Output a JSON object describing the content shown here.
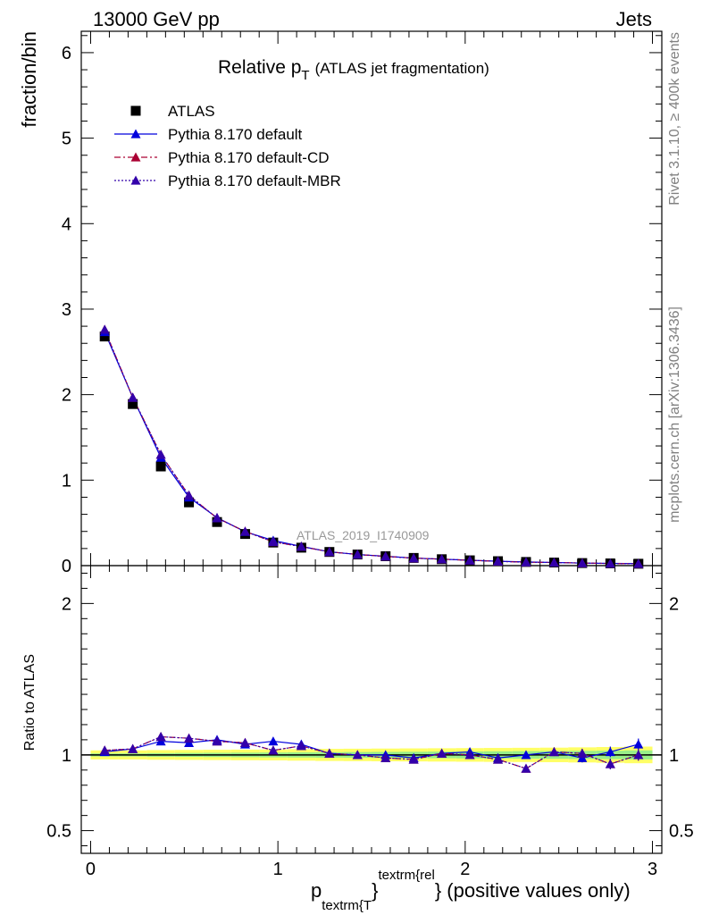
{
  "header": {
    "left": "13000 GeV pp",
    "right": "Jets"
  },
  "side": {
    "rivet": "Rivet 3.1.10, ≥ 400k events",
    "mcplots": "mcplots.cern.ch [arXiv:1306.3436]"
  },
  "chart_data": {
    "type": "scatter",
    "title_main": "Relative p",
    "title_sub": "T",
    "title_rest": "(ATLAS jet fragmentation)",
    "watermark": "ATLAS_2019_I1740909",
    "ylabel": "fraction/bin",
    "ratio_ylabel": "Ratio to ATLAS",
    "xlabel_main": "p",
    "xlabel_sub": "textrm{T",
    "xlabel_brace": "}",
    "xlabel_sup": "textrm{rel",
    "xlabel_rest": "} (positive values only)",
    "xlim": [
      -0.05,
      3.05
    ],
    "ylim": [
      0,
      6.25
    ],
    "ratio_ylim": [
      0.35,
      2.25
    ],
    "x_ticks": [
      "0",
      "1",
      "2",
      "3"
    ],
    "y_ticks": [
      "0",
      "1",
      "2",
      "3",
      "4",
      "5",
      "6"
    ],
    "ratio_ticks": [
      "0.5",
      "1",
      "2"
    ],
    "legend": [
      {
        "label": "ATLAS",
        "color": "#000000",
        "style": "marker"
      },
      {
        "label": "Pythia 8.170 default",
        "color": "#0000dd",
        "style": "solid"
      },
      {
        "label": "Pythia 8.170 default-CD",
        "color": "#aa0033",
        "style": "dashdot"
      },
      {
        "label": "Pythia 8.170 default-MBR",
        "color": "#3300aa",
        "style": "dotted"
      }
    ],
    "x": [
      0.075,
      0.225,
      0.375,
      0.525,
      0.675,
      0.825,
      0.975,
      1.125,
      1.275,
      1.425,
      1.575,
      1.725,
      1.875,
      2.025,
      2.175,
      2.325,
      2.475,
      2.625,
      2.775,
      2.925
    ],
    "data_values": [
      2.68,
      1.89,
      1.16,
      0.74,
      0.51,
      0.37,
      0.27,
      0.21,
      0.16,
      0.13,
      0.11,
      0.09,
      0.075,
      0.062,
      0.052,
      0.043,
      0.036,
      0.03,
      0.026,
      0.022
    ],
    "series": [
      {
        "name": "Pythia 8.170 default",
        "color": "#0000dd",
        "ratio": [
          1.02,
          1.04,
          1.09,
          1.08,
          1.1,
          1.07,
          1.09,
          1.07,
          1.01,
          1.0,
          1.0,
          0.98,
          1.01,
          1.02,
          0.98,
          1.0,
          1.02,
          0.98,
          1.02,
          1.07
        ],
        "ratio_err": [
          0.005,
          0.005,
          0.007,
          0.008,
          0.01,
          0.01,
          0.012,
          0.012,
          0.012,
          0.013,
          0.015,
          0.017,
          0.018,
          0.02,
          0.022,
          0.025,
          0.027,
          0.03,
          0.035,
          0.038
        ]
      },
      {
        "name": "Pythia 8.170 default-CD",
        "color": "#aa0033",
        "ratio": [
          1.03,
          1.04,
          1.12,
          1.11,
          1.09,
          1.08,
          1.03,
          1.06,
          1.01,
          1.0,
          0.98,
          0.97,
          1.01,
          1.0,
          0.97,
          0.91,
          1.02,
          1.01,
          0.94,
          1.0
        ],
        "ratio_err": [
          0.005,
          0.005,
          0.007,
          0.008,
          0.01,
          0.01,
          0.012,
          0.012,
          0.012,
          0.013,
          0.015,
          0.017,
          0.018,
          0.02,
          0.022,
          0.025,
          0.027,
          0.03,
          0.035,
          0.038
        ]
      },
      {
        "name": "Pythia 8.170 default-MBR",
        "color": "#3300aa",
        "ratio": [
          1.03,
          1.04,
          1.12,
          1.11,
          1.09,
          1.08,
          1.03,
          1.06,
          1.01,
          1.0,
          0.98,
          0.97,
          1.01,
          1.0,
          0.97,
          0.91,
          1.02,
          1.01,
          0.94,
          1.0
        ],
        "ratio_err": [
          0.005,
          0.005,
          0.007,
          0.008,
          0.01,
          0.01,
          0.012,
          0.012,
          0.012,
          0.013,
          0.015,
          0.017,
          0.018,
          0.02,
          0.022,
          0.025,
          0.027,
          0.03,
          0.035,
          0.038
        ]
      }
    ],
    "band_inner": [
      0.01,
      0.01,
      0.012,
      0.013,
      0.014,
      0.015,
      0.016,
      0.017,
      0.018,
      0.019,
      0.02,
      0.021,
      0.022,
      0.023,
      0.024,
      0.025,
      0.026,
      0.027,
      0.028,
      0.03
    ],
    "band_outer": [
      0.03,
      0.03,
      0.032,
      0.033,
      0.034,
      0.035,
      0.036,
      0.038,
      0.04,
      0.041,
      0.042,
      0.043,
      0.044,
      0.045,
      0.046,
      0.047,
      0.048,
      0.05,
      0.052,
      0.055
    ],
    "band_colors": {
      "outer": "#ffff66",
      "inner": "#99ee88"
    },
    "grid": false,
    "legend_position": "top-left"
  }
}
